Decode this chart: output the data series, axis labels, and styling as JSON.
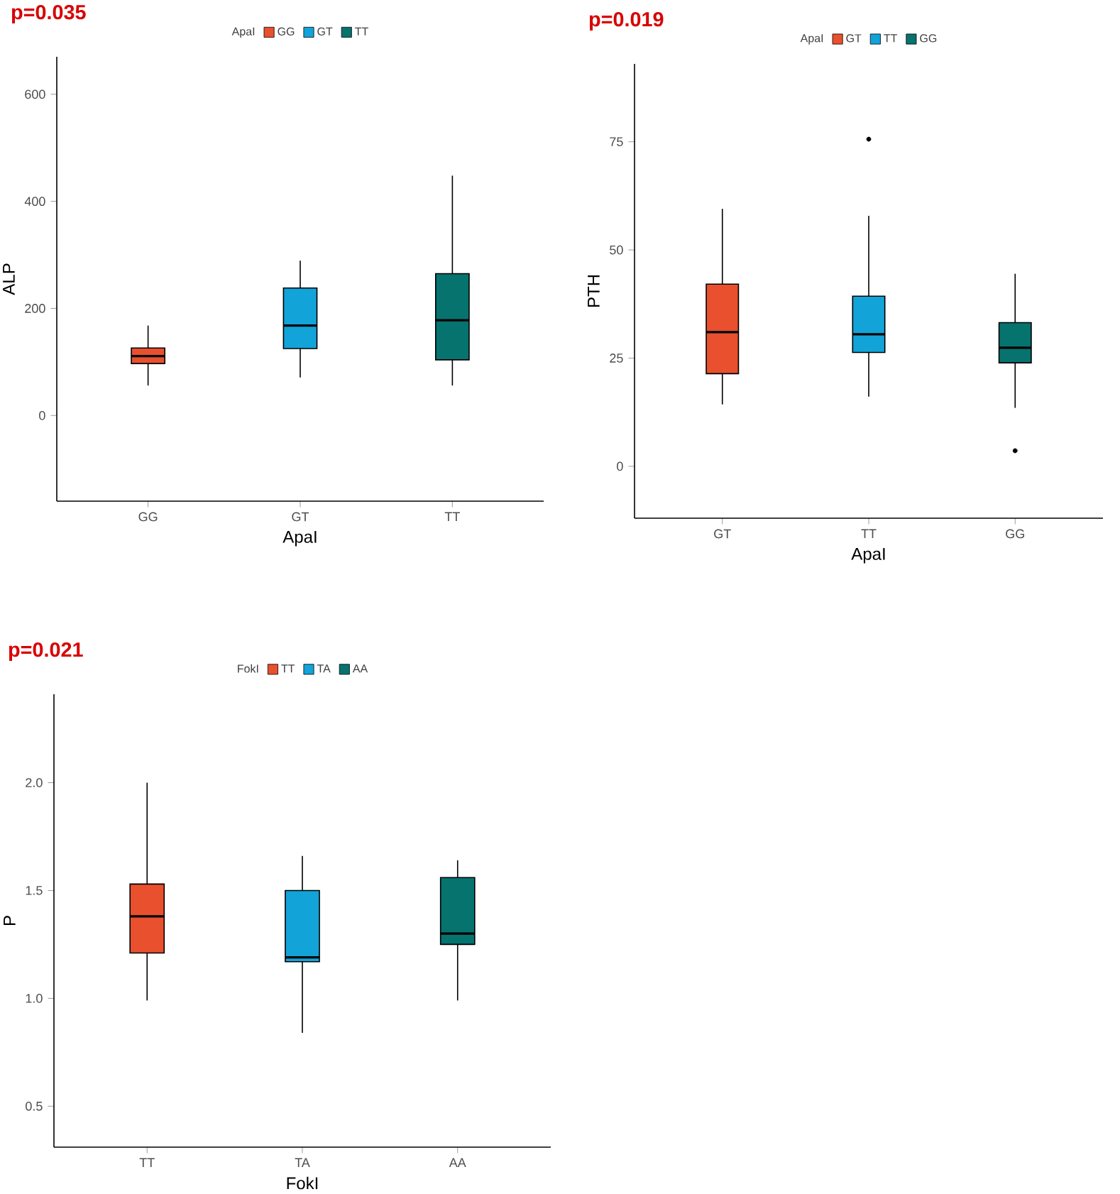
{
  "chart_data": [
    {
      "type": "box",
      "title": "p=0.035",
      "xlabel": "ApaI",
      "ylabel": "ALP",
      "legend_title": "ApaI",
      "legend": "top",
      "categories": [
        "GG",
        "GT",
        "TT"
      ],
      "series": [
        {
          "name": "GG",
          "color": "#e8502e",
          "boxes": [
            {
              "low": 56,
              "q1": 97,
              "median": 111,
              "q3": 126,
              "high": 168
            },
            null,
            null
          ]
        },
        {
          "name": "GT",
          "color": "#12a4d8",
          "boxes": [
            null,
            {
              "low": 71,
              "q1": 125,
              "median": 168,
              "q3": 238,
              "high": 289
            },
            null
          ]
        },
        {
          "name": "TT",
          "color": "#06736f",
          "boxes": [
            null,
            null,
            {
              "low": 56,
              "q1": 104,
              "median": 178,
              "q3": 265,
              "high": 448
            }
          ]
        }
      ],
      "ylim": [
        -160,
        670
      ],
      "yticks": [
        0,
        200,
        400,
        600
      ]
    },
    {
      "type": "box",
      "title": "p=0.019",
      "xlabel": "ApaI",
      "ylabel": "PTH",
      "legend_title": "ApaI",
      "legend": "top",
      "categories": [
        "GT",
        "TT",
        "GG"
      ],
      "series": [
        {
          "name": "GT",
          "color": "#e8502e",
          "boxes": [
            {
              "low": 14.3,
              "q1": 21.4,
              "median": 31,
              "q3": 42.1,
              "high": 59.5
            },
            null,
            null
          ]
        },
        {
          "name": "TT",
          "color": "#12a4d8",
          "boxes": [
            null,
            {
              "low": 16.1,
              "q1": 26.3,
              "median": 30.5,
              "q3": 39.3,
              "high": 57.9,
              "outliers": [
                75.6
              ]
            },
            null
          ]
        },
        {
          "name": "GG",
          "color": "#06736f",
          "boxes": [
            null,
            null,
            {
              "low": 13.5,
              "q1": 23.9,
              "median": 27.4,
              "q3": 33.2,
              "high": 44.5,
              "outliers": [
                3.6
              ]
            }
          ]
        }
      ],
      "ylim": [
        -12,
        93
      ],
      "yticks": [
        0,
        25,
        50,
        75
      ]
    },
    {
      "type": "box",
      "title": "p=0.021",
      "xlabel": "FokI",
      "ylabel": "P",
      "legend_title": "FokI",
      "legend": "top",
      "categories": [
        "TT",
        "TA",
        "AA"
      ],
      "series": [
        {
          "name": "TT",
          "color": "#e8502e",
          "boxes": [
            {
              "low": 0.99,
              "q1": 1.21,
              "median": 1.38,
              "q3": 1.53,
              "high": 2.0
            },
            null,
            null
          ]
        },
        {
          "name": "TA",
          "color": "#12a4d8",
          "boxes": [
            null,
            {
              "low": 0.84,
              "q1": 1.17,
              "median": 1.19,
              "q3": 1.5,
              "high": 1.66
            },
            null
          ]
        },
        {
          "name": "AA",
          "color": "#06736f",
          "boxes": [
            null,
            null,
            {
              "low": 0.99,
              "q1": 1.25,
              "median": 1.3,
              "q3": 1.56,
              "high": 1.64
            }
          ]
        }
      ],
      "ylim": [
        0.31,
        2.41
      ],
      "yticks": [
        {
          "value": 0.5,
          "label": "0.5"
        },
        {
          "value": 1,
          "label": "1.0"
        },
        {
          "value": 1.5,
          "label": "1.5"
        },
        {
          "value": 2,
          "label": "2.0"
        }
      ]
    }
  ]
}
